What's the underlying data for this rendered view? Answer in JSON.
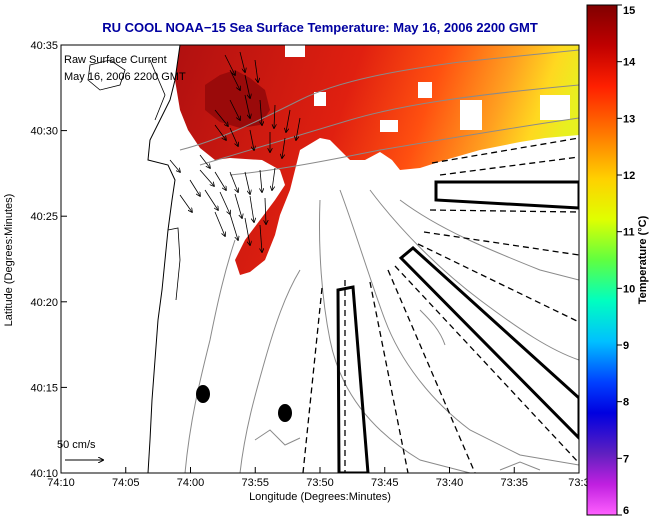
{
  "title": "RU COOL  NOAA−15  Sea Surface Temperature:  May 16, 2006 2200 GMT",
  "overlay": {
    "line1": "Raw Surface Current",
    "line2": "May 16, 2006 2200 GMT"
  },
  "scale_label": "50 cm/s",
  "axes": {
    "xlabel": "Longitude (Degrees:Minutes)",
    "ylabel": "Latitude (Degrees:Minutes)",
    "x_ticks": [
      "74:10",
      "74:05",
      "74:00",
      "73:55",
      "73:50",
      "73:45",
      "73:40",
      "73:35",
      "73:3"
    ],
    "y_ticks": [
      "40:35",
      "40:30",
      "40:25",
      "40:20",
      "40:15",
      "40:10"
    ]
  },
  "colorbar": {
    "label": "Temperature (°C)",
    "ticks": [
      "15",
      "14",
      "13",
      "12",
      "11",
      "10",
      "9",
      "8",
      "7",
      "6"
    ],
    "min": 6,
    "max": 15
  },
  "colors": {
    "title": "#0000a0",
    "overlay_text": "#0000a0"
  }
}
